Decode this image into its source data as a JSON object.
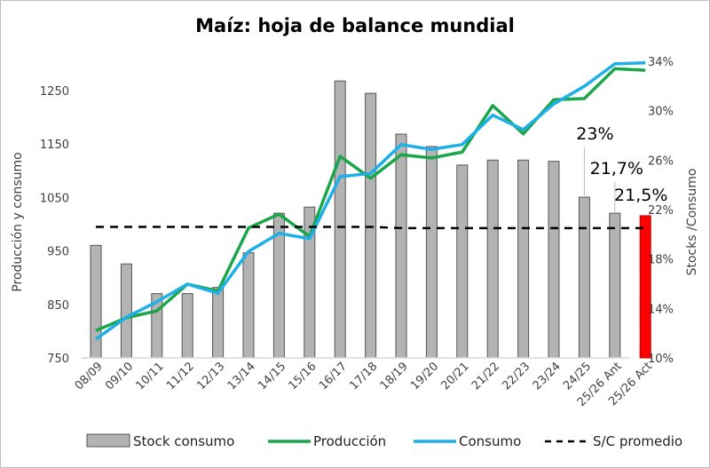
{
  "chart_data": {
    "type": "bar+line",
    "title": "Maíz: hoja de balance mundial",
    "ylabel_left": "Producción y consumo",
    "ylabel_right": "Stocks /Consumo",
    "ylim_left": [
      750,
      1300
    ],
    "yticks_left": [
      "750",
      "850",
      "950",
      "1050",
      "1150",
      "1250"
    ],
    "ylim_right": [
      10,
      34
    ],
    "yticks_right": [
      "10%",
      "14%",
      "18%",
      "22%",
      "26%",
      "30%",
      "34%"
    ],
    "categories": [
      "08/09",
      "09/10",
      "10/11",
      "11/12",
      "12/13",
      "13/14",
      "14/15",
      "15/16",
      "16/17",
      "17/18",
      "18/19",
      "19/20",
      "20/21",
      "21/22",
      "22/23",
      "23/24",
      "24/25",
      "25/26 Ant",
      "25/26 Act"
    ],
    "series": [
      {
        "name": "Stock consumo",
        "type": "bar",
        "axis": "right",
        "color": "#b3b3b3",
        "highlight_last_color": "#ff0000",
        "values": [
          19.1,
          17.6,
          15.2,
          15.2,
          15.7,
          18.5,
          21.7,
          22.2,
          32.4,
          31.4,
          28.1,
          27.1,
          25.6,
          26.0,
          26.0,
          25.9,
          23.0,
          21.7,
          21.5
        ]
      },
      {
        "name": "Producción",
        "type": "line",
        "axis": "left",
        "color": "#1aa64a",
        "values": [
          801,
          825,
          838,
          888,
          875,
          993,
          1019,
          977,
          1127,
          1086,
          1130,
          1124,
          1135,
          1222,
          1169,
          1233,
          1235,
          1291,
          1288
        ]
      },
      {
        "name": "Consumo",
        "type": "line",
        "axis": "left",
        "color": "#1eaee8",
        "values": [
          785,
          826,
          855,
          888,
          871,
          949,
          983,
          973,
          1089,
          1095,
          1149,
          1140,
          1149,
          1204,
          1177,
          1225,
          1258,
          1300,
          1302
        ]
      },
      {
        "name": "S/C promedio",
        "type": "dashed-line",
        "axis": "right",
        "color": "#000000",
        "values": [
          20.6,
          20.6,
          20.6,
          20.6,
          20.6,
          20.6,
          20.6,
          20.6,
          20.6,
          20.6,
          20.5,
          20.5,
          20.5,
          20.5,
          20.5,
          20.5,
          20.5,
          20.5,
          20.5
        ]
      }
    ],
    "annotations": [
      {
        "category": "24/25",
        "text": "23%"
      },
      {
        "category": "25/26 Ant",
        "text": "21,7%"
      },
      {
        "category": "25/26 Act",
        "text": "21,5%"
      }
    ],
    "legend_position": "bottom",
    "grid": false
  }
}
